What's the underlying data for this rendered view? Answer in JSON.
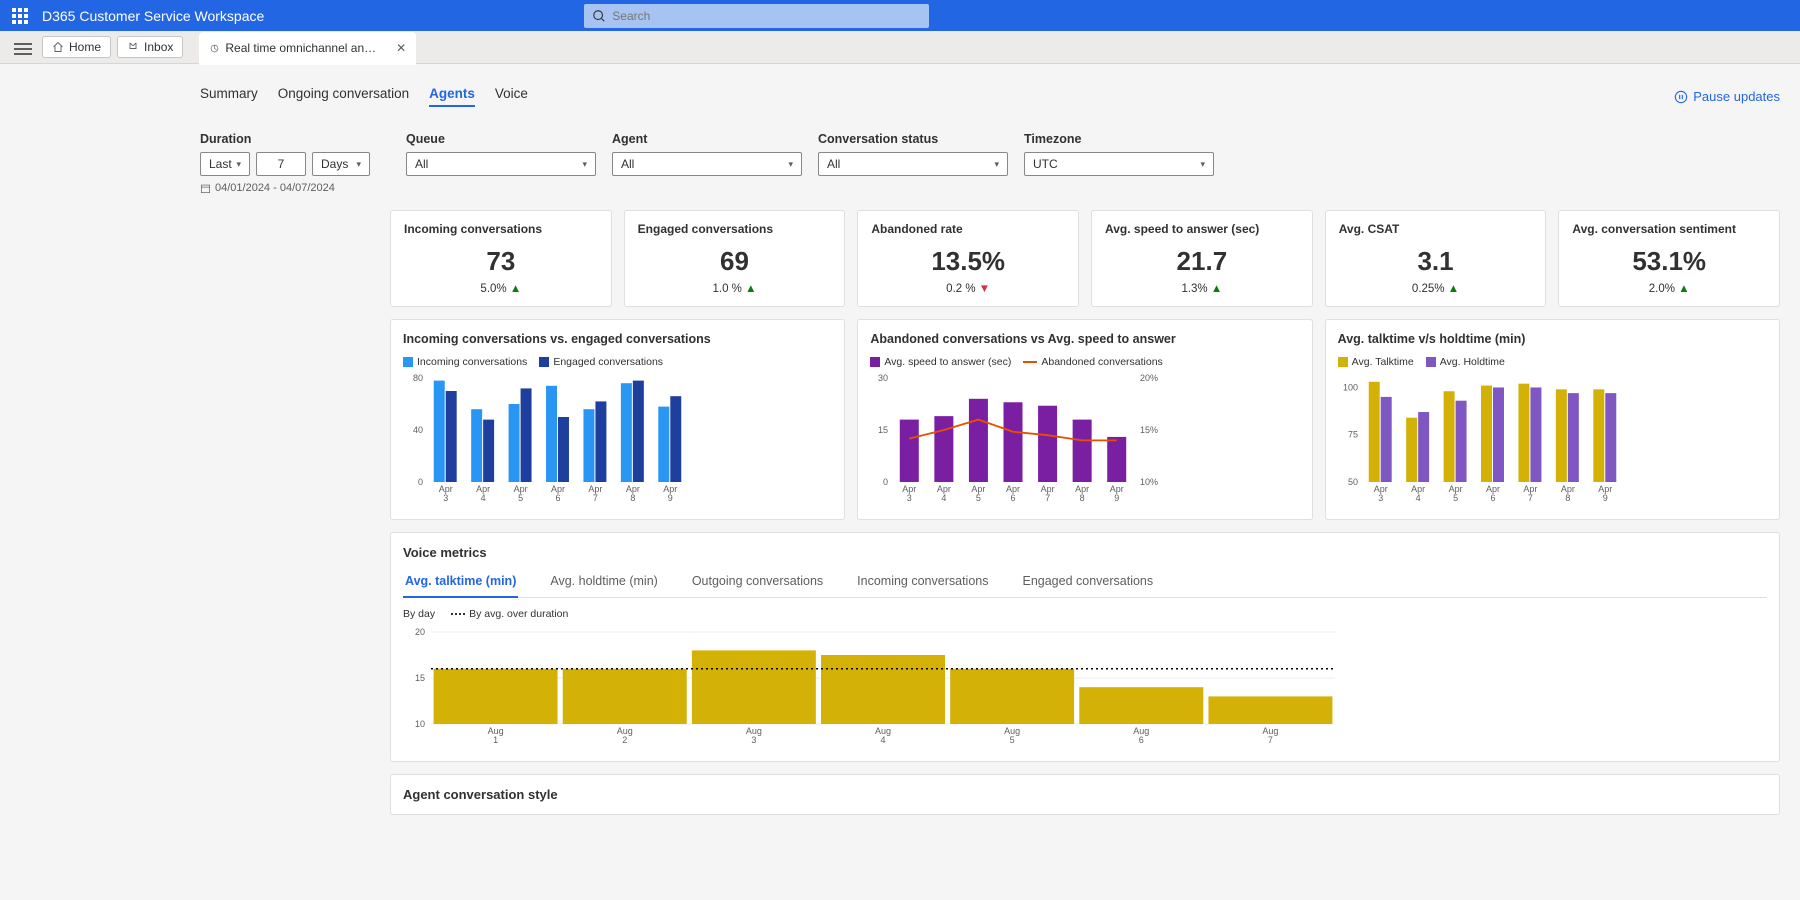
{
  "app": {
    "title": "D365 Customer Service Workspace",
    "search_placeholder": "Search"
  },
  "toolbar": {
    "home": "Home",
    "inbox": "Inbox",
    "tab": "Real time omnichannel an…"
  },
  "subtabs": {
    "items": [
      "Summary",
      "Ongoing conversation",
      "Agents",
      "Voice"
    ],
    "active": 2,
    "pause": "Pause updates"
  },
  "filters": {
    "duration_label": "Duration",
    "duration_mode": "Last",
    "duration_value": "7",
    "duration_unit": "Days",
    "daterange": "04/01/2024 - 04/07/2024",
    "queue_label": "Queue",
    "queue": "All",
    "agent_label": "Agent",
    "agent": "All",
    "status_label": "Conversation status",
    "status": "All",
    "tz_label": "Timezone",
    "tz": "UTC"
  },
  "kpis": [
    {
      "label": "Incoming conversations",
      "value": "73",
      "delta": "5.0%",
      "dir": "up"
    },
    {
      "label": "Engaged conversations",
      "value": "69",
      "delta": "1.0 %",
      "dir": "up"
    },
    {
      "label": "Abandoned rate",
      "value": "13.5%",
      "delta": "0.2 %",
      "dir": "down"
    },
    {
      "label": "Avg. speed to answer (sec)",
      "value": "21.7",
      "delta": "1.3%",
      "dir": "up"
    },
    {
      "label": "Avg. CSAT",
      "value": "3.1",
      "delta": "0.25%",
      "dir": "up"
    },
    {
      "label": "Avg. conversation sentiment",
      "value": "53.1%",
      "delta": "2.0%",
      "dir": "up"
    }
  ],
  "chart1": {
    "title": "Incoming conversations  vs. engaged conversations",
    "legend": [
      {
        "label": "Incoming conversations",
        "color": "#2a96f4"
      },
      {
        "label": "Engaged conversations",
        "color": "#1f3f9e"
      }
    ],
    "categories": [
      "Apr 3",
      "Apr 4",
      "Apr 5",
      "Apr 6",
      "Apr 7",
      "Apr 8",
      "Apr 9"
    ],
    "yticks": [
      0,
      40,
      80
    ],
    "series": [
      {
        "color": "#2a96f4",
        "values": [
          78,
          56,
          60,
          74,
          56,
          76,
          58
        ]
      },
      {
        "color": "#1f3f9e",
        "values": [
          70,
          48,
          72,
          50,
          62,
          78,
          66
        ]
      }
    ]
  },
  "chart2": {
    "title": "Abandoned conversations vs Avg. speed to answer",
    "legend": [
      {
        "label": "Avg. speed to answer (sec)",
        "color": "#7b1fa2",
        "type": "bar"
      },
      {
        "label": "Abandoned conversations",
        "color": "#e65100",
        "type": "line"
      }
    ],
    "categories": [
      "Apr 3",
      "Apr 4",
      "Apr 5",
      "Apr 6",
      "Apr 7",
      "Apr 8",
      "Apr 9"
    ],
    "yticks_left": [
      0,
      15,
      30
    ],
    "yticks_right": [
      "10%",
      "15%",
      "20%"
    ],
    "bars": {
      "color": "#7b1fa2",
      "values": [
        18,
        19,
        24,
        23,
        22,
        18,
        13
      ]
    },
    "line": {
      "color": "#e65100",
      "values": [
        12.5,
        15,
        18,
        14.5,
        13.5,
        12,
        12
      ]
    }
  },
  "chart3": {
    "title": "Avg. talktime v/s holdtime (min)",
    "legend": [
      {
        "label": "Avg. Talktime",
        "color": "#d4b106"
      },
      {
        "label": "Avg. Holdtime",
        "color": "#7e57c2"
      }
    ],
    "categories": [
      "Apr 3",
      "Apr 4",
      "Apr 5",
      "Apr 6",
      "Apr 7",
      "Apr 8",
      "Apr 9"
    ],
    "yticks": [
      50,
      75,
      100
    ],
    "series": [
      {
        "color": "#d4b106",
        "values": [
          103,
          84,
          98,
          101,
          102,
          99,
          99
        ]
      },
      {
        "color": "#7e57c2",
        "values": [
          95,
          87,
          93,
          100,
          100,
          97,
          97
        ]
      }
    ]
  },
  "voice": {
    "title": "Voice metrics",
    "tabs": [
      "Avg. talktime (min)",
      "Avg. holdtime (min)",
      "Outgoing conversations",
      "Incoming conversations",
      "Engaged conversations"
    ],
    "active_tab": 0,
    "legend": [
      {
        "label": "By day",
        "swatch": "#d4b106"
      },
      {
        "label": "By avg. over duration",
        "dashed": true
      }
    ],
    "categories": [
      "Aug 1",
      "Aug 2",
      "Aug 3",
      "Aug 4",
      "Aug 5",
      "Aug 6",
      "Aug 7"
    ],
    "yticks": [
      10,
      15,
      20
    ],
    "bars": {
      "color": "#d4b106",
      "values": [
        16,
        16,
        18,
        17.5,
        16,
        14,
        13
      ]
    },
    "avg": 16
  },
  "section2": {
    "title": "Agent conversation style"
  }
}
